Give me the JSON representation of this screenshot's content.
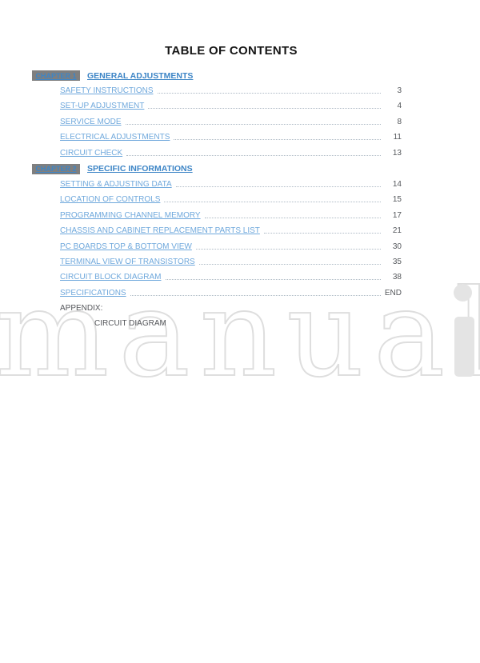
{
  "page_title": "TABLE OF CONTENTS",
  "chapters": [
    {
      "badge": "CHAPTER 1",
      "title": "GENERAL ADJUSTMENTS",
      "items": [
        {
          "label": "SAFETY INSTRUCTIONS",
          "page": "3"
        },
        {
          "label": "SET-UP ADJUSTMENT",
          "page": "4"
        },
        {
          "label": "SERVICE MODE",
          "page": "8"
        },
        {
          "label": "ELECTRICAL ADJUSTMENTS",
          "page": "11"
        },
        {
          "label": "CIRCUIT CHECK",
          "page": "13"
        }
      ]
    },
    {
      "badge": "CHAPTER 2",
      "title": "SPECIFIC INFORMATIONS",
      "items": [
        {
          "label": "SETTING & ADJUSTING DATA",
          "page": "14"
        },
        {
          "label": "LOCATION OF CONTROLS",
          "page": "15"
        },
        {
          "label": "PROGRAMMING CHANNEL MEMORY",
          "page": "17"
        },
        {
          "label": "CHASSIS AND CABINET REPLACEMENT PARTS LIST",
          "page": "21"
        },
        {
          "label": "PC BOARDS TOP & BOTTOM VIEW",
          "page": "30"
        },
        {
          "label": "TERMINAL VIEW OF TRANSISTORS",
          "page": "35"
        },
        {
          "label": "CIRCUIT BLOCK DIAGRAM",
          "page": "38"
        },
        {
          "label": "SPECIFICATIONS",
          "page": "END"
        }
      ]
    }
  ],
  "appendix": {
    "label": "APPENDIX:",
    "items": [
      "CIRCUIT DIAGRAM"
    ]
  },
  "watermark": {
    "outline_text": "manual",
    "solid_letter": "i"
  },
  "colors": {
    "link_blue": "#6FA8DC",
    "chapter_blue": "#3D85C6",
    "badge_gray": "#7F7F7F",
    "page_number_gray": "#55585C",
    "leader_gray": "#AEBAC5",
    "watermark_gray": "#DEDEDE",
    "watermark_fill": "#E4E4E4"
  }
}
